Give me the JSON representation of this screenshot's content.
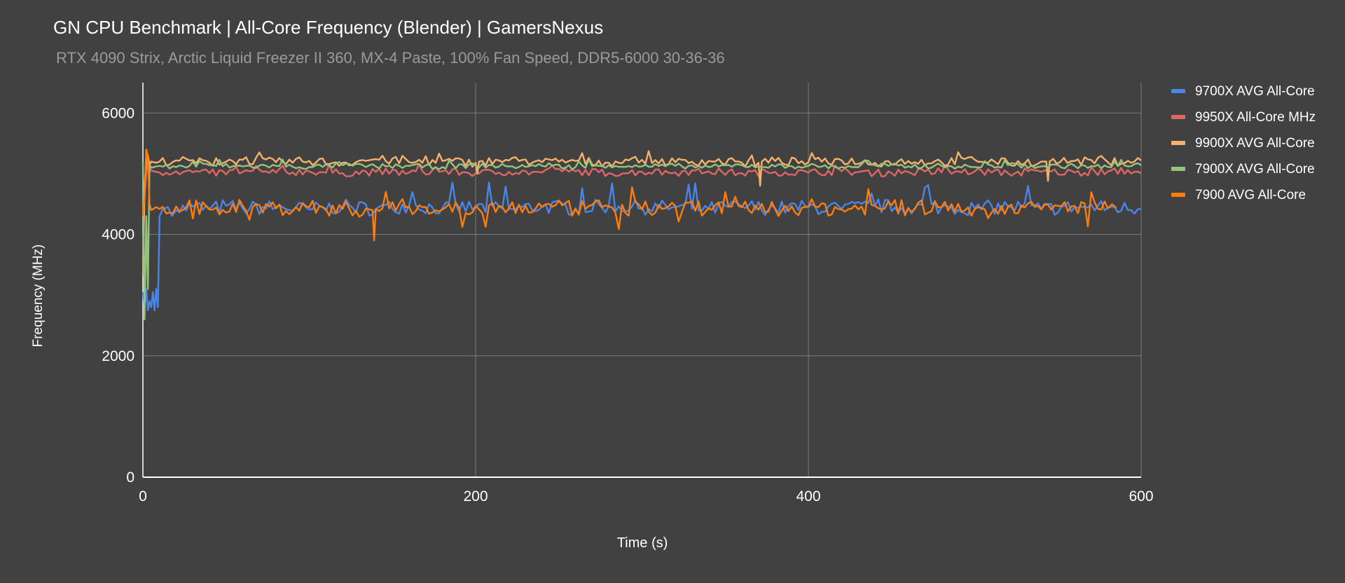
{
  "title": "GN CPU Benchmark | All-Core Frequency (Blender) | GamersNexus",
  "subtitle": "RTX 4090 Strix, Arctic Liquid Freezer II 360, MX-4 Paste, 100% Fan Speed, DDR5-6000 30-36-36",
  "chart_data": {
    "type": "line",
    "title": "GN CPU Benchmark | All-Core Frequency (Blender) | GamersNexus",
    "subtitle": "RTX 4090 Strix, Arctic Liquid Freezer II 360, MX-4 Paste, 100% Fan Speed, DDR5-6000 30-36-36",
    "xlabel": "Time (s)",
    "ylabel": "Frequency (MHz)",
    "xlim": [
      0,
      600
    ],
    "ylim": [
      0,
      6500
    ],
    "xticks": [
      0,
      200,
      400,
      600
    ],
    "yticks": [
      0,
      2000,
      4000,
      6000
    ],
    "grid": true,
    "legend_position": "right",
    "series": [
      {
        "name": "9700X AVG All-Core",
        "color": "#4a86e8",
        "x": [
          0,
          1,
          2,
          3,
          4,
          5,
          6,
          7,
          8,
          9,
          10,
          12,
          15,
          20,
          30,
          40,
          50,
          60,
          80,
          100,
          120,
          140,
          160,
          180,
          200,
          220,
          240,
          260,
          280,
          300,
          320,
          340,
          360,
          380,
          400,
          420,
          440,
          460,
          480,
          500,
          520,
          540,
          560,
          580,
          600
        ],
        "values": [
          3050,
          2800,
          3100,
          2750,
          2900,
          2800,
          3050,
          2750,
          3100,
          2800,
          4300,
          4420,
          4450,
          4400,
          4460,
          4420,
          4470,
          4430,
          4450,
          4410,
          4460,
          4420,
          4480,
          4430,
          4450,
          4420,
          4460,
          4430,
          4470,
          4440,
          4450,
          4420,
          4460,
          4430,
          4450,
          4420,
          4470,
          4440,
          4450,
          4430,
          4460,
          4420,
          4450,
          4440,
          4420
        ]
      },
      {
        "name": "9950X All-Core MHz",
        "color": "#e06666",
        "x": [
          0,
          1,
          2,
          3,
          4,
          5,
          8,
          10,
          20,
          40,
          60,
          80,
          100,
          120,
          140,
          160,
          180,
          200,
          220,
          240,
          260,
          280,
          300,
          320,
          340,
          360,
          380,
          400,
          420,
          440,
          460,
          480,
          500,
          520,
          540,
          560,
          580,
          600
        ],
        "values": [
          3600,
          4600,
          5000,
          5300,
          5100,
          5050,
          5030,
          5020,
          5040,
          5010,
          5030,
          5020,
          5040,
          5010,
          5030,
          5020,
          5040,
          5010,
          5030,
          5020,
          5040,
          5010,
          5030,
          5020,
          5040,
          5010,
          5030,
          5020,
          5040,
          5010,
          5030,
          5020,
          5040,
          5010,
          5030,
          5020,
          5040,
          5010
        ]
      },
      {
        "name": "9900X AVG All-Core",
        "color": "#f6b26b",
        "x": [
          0,
          1,
          2,
          3,
          4,
          5,
          8,
          10,
          20,
          40,
          60,
          80,
          100,
          120,
          140,
          160,
          180,
          200,
          201,
          202,
          220,
          240,
          260,
          280,
          300,
          320,
          340,
          360,
          370,
          371,
          372,
          380,
          400,
          420,
          440,
          460,
          480,
          500,
          520,
          540,
          543,
          544,
          545,
          560,
          580,
          600
        ],
        "values": [
          3300,
          4800,
          5200,
          5300,
          5150,
          5200,
          5180,
          5200,
          5220,
          5180,
          5230,
          5190,
          5210,
          5180,
          5240,
          5190,
          5210,
          5180,
          5000,
          5200,
          5220,
          5190,
          5210,
          5180,
          5230,
          5190,
          5210,
          5180,
          5180,
          4800,
          5200,
          5210,
          5190,
          5220,
          5180,
          5210,
          5190,
          5230,
          5180,
          5200,
          5200,
          4880,
          5200,
          5210,
          5190,
          5220
        ]
      },
      {
        "name": "7900X AVG All-Core",
        "color": "#93c47d",
        "x": [
          0,
          1,
          2,
          3,
          4,
          5,
          8,
          10,
          20,
          40,
          60,
          80,
          100,
          120,
          140,
          160,
          180,
          200,
          220,
          240,
          260,
          280,
          300,
          320,
          340,
          360,
          380,
          400,
          420,
          440,
          460,
          480,
          500,
          520,
          540,
          560,
          580,
          600
        ],
        "values": [
          5200,
          2600,
          4300,
          3100,
          5150,
          5100,
          5120,
          5130,
          5110,
          5140,
          5120,
          5130,
          5110,
          5140,
          5120,
          5130,
          5110,
          5140,
          5120,
          5130,
          5110,
          5140,
          5120,
          5130,
          5110,
          5140,
          5120,
          5130,
          5110,
          5140,
          5120,
          5130,
          5110,
          5140,
          5120,
          5130,
          5110,
          5140
        ]
      },
      {
        "name": "7900 AVG All-Core",
        "color": "#ff7c0f",
        "x": [
          0,
          1,
          2,
          3,
          4,
          5,
          8,
          10,
          20,
          40,
          60,
          80,
          100,
          120,
          138,
          139,
          140,
          160,
          180,
          200,
          220,
          240,
          260,
          280,
          300,
          320,
          340,
          360,
          380,
          400,
          420,
          440,
          460,
          480,
          500,
          520,
          540,
          560,
          580,
          585
        ],
        "values": [
          4300,
          4600,
          5400,
          5300,
          4500,
          4400,
          4450,
          4420,
          4460,
          4410,
          4470,
          4430,
          4450,
          4420,
          4400,
          3900,
          4420,
          4460,
          4410,
          4470,
          4430,
          4450,
          4420,
          4460,
          4410,
          4470,
          4430,
          4450,
          4420,
          4460,
          4410,
          4470,
          4430,
          4450,
          4420,
          4460,
          4410,
          4470,
          4430,
          4440
        ]
      }
    ]
  }
}
